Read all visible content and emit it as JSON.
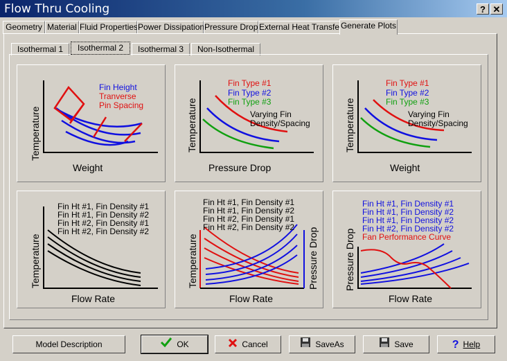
{
  "window": {
    "title": "Flow Thru Cooling",
    "help_glyph": "?",
    "close_glyph": "✕"
  },
  "tabs": [
    "Geometry",
    "Material",
    "Fluid Properties",
    "Power Dissipation",
    "Pressure Drop",
    "External Heat Transfer",
    "Generate Plots"
  ],
  "active_tab": "Generate Plots",
  "subtabs": [
    "Isothermal 1",
    "Isothermal 2",
    "Isothermal 3",
    "Non-Isothermal"
  ],
  "active_subtab": "Isothermal 2",
  "plots": [
    {
      "xlabel": "Weight",
      "ylabel": "Temperature",
      "legend": [
        "Fin Height",
        "Tranverse",
        "Pin Spacing"
      ],
      "legend_colors": [
        "#1010e0",
        "#e01010",
        "#e01010"
      ]
    },
    {
      "xlabel": "Pressure Drop",
      "ylabel": "Temperature",
      "legend": [
        "Fin Type #1",
        "Fin Type #2",
        "Fin Type #3"
      ],
      "legend_colors": [
        "#e01010",
        "#1010e0",
        "#10a010"
      ],
      "note": [
        "Varying Fin",
        "Density/Spacing"
      ]
    },
    {
      "xlabel": "Weight",
      "ylabel": "Temperature",
      "legend": [
        "Fin Type #1",
        "Fin Type #2",
        "Fin Type #3"
      ],
      "legend_colors": [
        "#e01010",
        "#1010e0",
        "#10a010"
      ],
      "note": [
        "Varying Fin",
        "Density/Spacing"
      ]
    },
    {
      "xlabel": "Flow Rate",
      "ylabel": "Temperature",
      "legend": [
        "Fin Ht #1, Fin Density #1",
        "Fin Ht #1, Fin Density #2",
        "Fin Ht #2, Fin Density #1",
        "Fin Ht #2, Fin Density #2"
      ]
    },
    {
      "xlabel": "Flow Rate",
      "ylabel": "Temperature",
      "y2label": "Pressure Drop",
      "legend": [
        "Fin Ht #1, Fin Density #1",
        "Fin Ht #1, Fin Density #2",
        "Fin Ht #2, Fin Density #1",
        "Fin Ht #2, Fin Density #2"
      ]
    },
    {
      "xlabel": "Flow Rate",
      "ylabel": "Pressure Drop",
      "legend": [
        "Fin Ht #1, Fin Density #1",
        "Fin Ht #1, Fin Density #2",
        "Fin Ht #1, Fin Density #2",
        "Fin Ht #2, Fin Density #2",
        "Fan Performance Curve"
      ],
      "legend_colors": [
        "#1010e0",
        "#1010e0",
        "#1010e0",
        "#1010e0",
        "#e01010"
      ]
    }
  ],
  "colors": {
    "red": "#e01010",
    "blue": "#1010e0",
    "green": "#10a010",
    "black": "#000000"
  },
  "buttons": {
    "model_description": "Model Description",
    "ok": "OK",
    "cancel": "Cancel",
    "save_as": "SaveAs",
    "save": "Save",
    "help": "Help",
    "ok_icon": "checkmark-icon",
    "cancel_icon": "x-icon",
    "save_as_icon": "floppy-disk-icon",
    "save_icon": "floppy-disk-icon",
    "help_icon": "question-mark-icon"
  }
}
